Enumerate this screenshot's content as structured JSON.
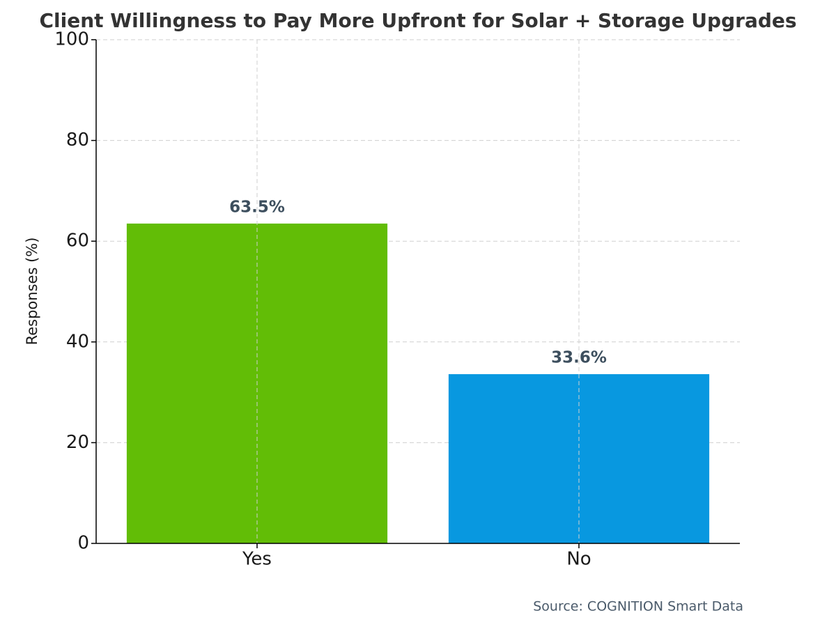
{
  "chart_data": {
    "type": "bar",
    "title": "Client Willingness to Pay More Upfront for Solar + Storage Upgrades",
    "y_label": "Responses (%)",
    "source": "Source: COGNITION Smart Data",
    "categories": [
      "Yes",
      "No"
    ],
    "values": [
      63.5,
      33.6
    ],
    "value_labels": [
      "63.5%",
      "33.6%"
    ],
    "colors": [
      "#62bd06",
      "#0898e0"
    ],
    "ylim": [
      0,
      100
    ],
    "yticks": [
      0,
      20,
      40,
      60,
      80,
      100
    ],
    "grid": true
  }
}
